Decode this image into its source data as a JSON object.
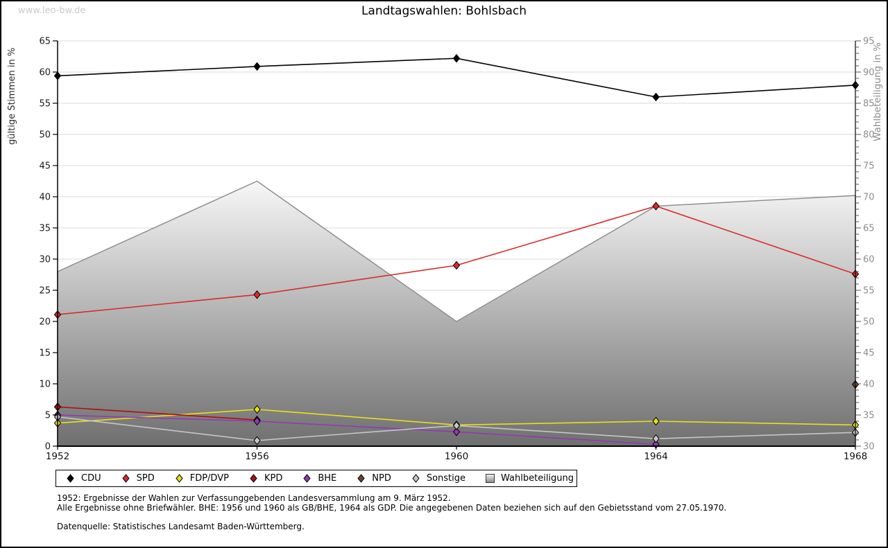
{
  "watermark": "www.leo-bw.de",
  "title": "Landtagswahlen: Bohlsbach",
  "footnotes": {
    "line1": "1952: Ergebnisse der Wahlen zur Verfassunggebenden Landesversammlung am 9. März 1952.",
    "line2": "Alle Ergebnisse ohne Briefwähler. BHE: 1956 und 1960 als GB/BHE, 1964 als GDP. Die angegebenen Daten beziehen sich auf den Gebietsstand vom 27.05.1970.",
    "source": "Datenquelle: Statistisches Landesamt Baden-Württemberg."
  },
  "chart_data": {
    "type": "line",
    "x_labels": [
      "1952",
      "1956",
      "1960",
      "1964",
      "1968"
    ],
    "left_axis": {
      "label": "gültige Stimmen in %",
      "min": 0,
      "max": 65,
      "tick_step": 5
    },
    "right_axis": {
      "label": "Wahlbeteiligung in %",
      "min": 30,
      "max": 95,
      "tick_step": 5,
      "minor_tick_step": 1
    },
    "grid": "horizontal",
    "series": [
      {
        "name": "CDU",
        "axis": "left",
        "color": "#000000",
        "values": [
          59.4,
          60.9,
          62.2,
          56.0,
          57.9
        ]
      },
      {
        "name": "SPD",
        "axis": "left",
        "color": "#d92b2b",
        "values": [
          21.1,
          24.3,
          29.0,
          38.5,
          27.6
        ]
      },
      {
        "name": "FDP/DVP",
        "axis": "left",
        "color": "#e8e019",
        "values": [
          3.7,
          5.9,
          3.4,
          4.0,
          3.4
        ]
      },
      {
        "name": "KPD",
        "axis": "left",
        "color": "#b00d0d",
        "values": [
          6.3,
          4.2,
          null,
          null,
          null
        ]
      },
      {
        "name": "BHE",
        "axis": "left",
        "color": "#9437b4",
        "values": [
          5.0,
          4.0,
          2.3,
          0.3,
          null
        ]
      },
      {
        "name": "NPD",
        "axis": "left",
        "color": "#6b4226",
        "values": [
          null,
          null,
          null,
          null,
          9.9
        ]
      },
      {
        "name": "Sonstige",
        "axis": "left",
        "color": "#c6c6c6",
        "values": [
          4.7,
          0.9,
          3.3,
          1.2,
          2.2
        ]
      }
    ],
    "area_series": {
      "name": "Wahlbeteiligung",
      "axis": "right",
      "values": [
        58.0,
        72.5,
        50.0,
        68.5,
        70.2
      ],
      "fill_top": "#f7f7f7",
      "fill_bottom": "#6f6f6f",
      "stroke": "#8f8f8f"
    },
    "legend_position": "bottom"
  }
}
